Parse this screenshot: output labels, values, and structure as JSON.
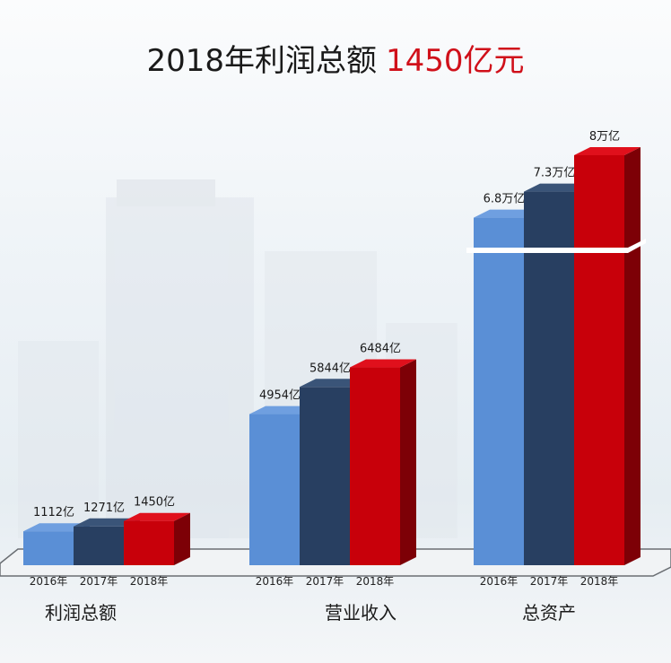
{
  "title": {
    "main": "2018年利润总额",
    "highlight": "1450亿元"
  },
  "colors": {
    "2016年": "#5a8fd6",
    "2017年": "#283f61",
    "2018年": "#c8000a",
    "title_highlight": "#d0101a"
  },
  "chart_data": {
    "type": "bar",
    "title": "2018年利润总额 1450亿元",
    "axis_break": "总资产",
    "series_labels": [
      "2016年",
      "2017年",
      "2018年"
    ],
    "groups": [
      {
        "category": "利润总额",
        "unit": "亿",
        "values": [
          1112,
          1271,
          1450
        ],
        "labels": [
          "1112亿",
          "1271亿",
          "1450亿"
        ]
      },
      {
        "category": "营业收入",
        "unit": "亿",
        "values": [
          4954,
          5844,
          6484
        ],
        "labels": [
          "4954亿",
          "5844亿",
          "6484亿"
        ]
      },
      {
        "category": "总资产",
        "unit": "万亿",
        "values": [
          6.8,
          7.3,
          8
        ],
        "labels": [
          "6.8万亿",
          "7.3万亿",
          "8万亿"
        ]
      }
    ],
    "grid": false,
    "legend": "none"
  }
}
